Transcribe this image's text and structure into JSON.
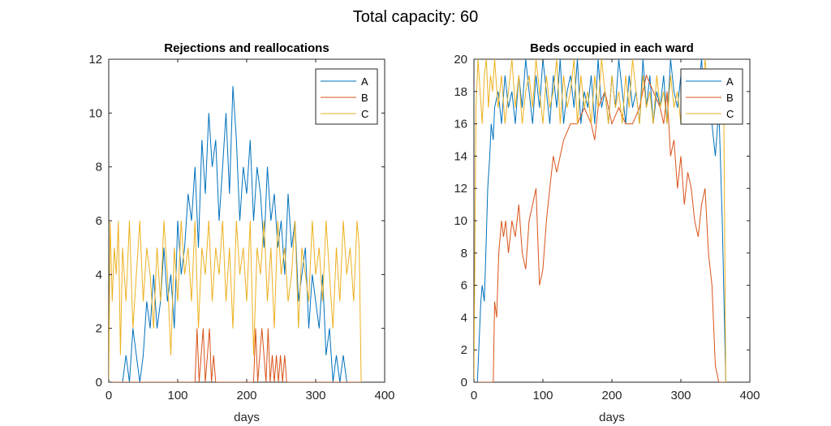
{
  "page": {
    "title": "Total capacity: 60"
  },
  "chart_data": [
    {
      "type": "line",
      "title": "Rejections and reallocations",
      "xlabel": "days",
      "ylabel": "",
      "xlim": [
        0,
        400
      ],
      "ylim": [
        0,
        12
      ],
      "xticks": [
        0,
        100,
        200,
        300,
        400
      ],
      "yticks": [
        0,
        2,
        4,
        6,
        8,
        10,
        12
      ],
      "legend": "top-right",
      "series": [
        {
          "name": "A",
          "color": "#0072BD",
          "x": [
            0,
            20,
            25,
            30,
            35,
            40,
            45,
            50,
            55,
            60,
            65,
            70,
            75,
            80,
            85,
            90,
            95,
            100,
            105,
            110,
            115,
            120,
            125,
            130,
            135,
            140,
            145,
            150,
            155,
            160,
            165,
            170,
            175,
            180,
            185,
            190,
            195,
            200,
            205,
            210,
            215,
            220,
            225,
            230,
            235,
            240,
            245,
            250,
            255,
            260,
            265,
            270,
            275,
            280,
            285,
            290,
            295,
            300,
            305,
            310,
            315,
            320,
            325,
            330,
            335,
            340,
            345,
            365
          ],
          "y": [
            0,
            0,
            1,
            0,
            2,
            1,
            0,
            1,
            3,
            2,
            4,
            2,
            3,
            5,
            3,
            4,
            2,
            6,
            4,
            5,
            7,
            6,
            8,
            5,
            9,
            7,
            10,
            8,
            9,
            6,
            8,
            10,
            7,
            11,
            9,
            6,
            8,
            7,
            9,
            6,
            8,
            7,
            5,
            8,
            6,
            7,
            5,
            6,
            4,
            7,
            5,
            6,
            3,
            4,
            5,
            2,
            4,
            3,
            2,
            4,
            1,
            2,
            0,
            1,
            0,
            1,
            0,
            0
          ]
        },
        {
          "name": "B",
          "color": "#D95319",
          "x": [
            0,
            100,
            125,
            128,
            131,
            134,
            137,
            140,
            143,
            146,
            149,
            152,
            155,
            158,
            200,
            210,
            213,
            216,
            219,
            222,
            225,
            228,
            231,
            234,
            237,
            240,
            243,
            246,
            249,
            252,
            255,
            258,
            365
          ],
          "y": [
            0,
            0,
            0,
            2,
            0,
            1,
            2,
            0,
            1,
            2,
            0,
            1,
            0,
            0,
            0,
            0,
            2,
            0,
            1,
            2,
            1,
            0,
            2,
            0,
            1,
            0,
            1,
            0,
            1,
            0,
            1,
            0,
            0
          ]
        },
        {
          "name": "C",
          "color": "#EDB120",
          "x": [
            0,
            2,
            5,
            8,
            11,
            14,
            17,
            20,
            25,
            30,
            35,
            40,
            45,
            50,
            55,
            60,
            65,
            70,
            75,
            80,
            85,
            90,
            95,
            100,
            105,
            110,
            115,
            120,
            125,
            130,
            135,
            140,
            145,
            150,
            155,
            160,
            165,
            170,
            175,
            180,
            185,
            190,
            195,
            200,
            205,
            210,
            215,
            220,
            225,
            230,
            235,
            240,
            245,
            250,
            255,
            260,
            265,
            270,
            275,
            280,
            285,
            290,
            295,
            300,
            305,
            310,
            315,
            320,
            325,
            330,
            335,
            340,
            345,
            350,
            355,
            360,
            363,
            366
          ],
          "y": [
            0,
            6,
            3,
            5,
            4,
            6,
            1,
            5,
            3,
            6,
            2,
            4,
            6,
            3,
            5,
            4,
            2,
            5,
            3,
            6,
            4,
            1,
            5,
            3,
            6,
            4,
            5,
            3,
            6,
            2,
            5,
            4,
            6,
            3,
            5,
            4,
            6,
            3,
            5,
            2,
            6,
            4,
            5,
            3,
            6,
            1,
            5,
            4,
            6,
            3,
            5,
            2,
            6,
            4,
            5,
            3,
            4,
            6,
            2,
            5,
            4,
            3,
            6,
            4,
            5,
            3,
            6,
            4,
            2,
            5,
            3,
            6,
            4,
            5,
            3,
            6,
            5,
            0
          ]
        }
      ]
    },
    {
      "type": "line",
      "title": "Beds occupied in each ward",
      "xlabel": "days",
      "ylabel": "",
      "xlim": [
        0,
        400
      ],
      "ylim": [
        0,
        20
      ],
      "xticks": [
        0,
        100,
        200,
        300,
        400
      ],
      "yticks": [
        0,
        2,
        4,
        6,
        8,
        10,
        12,
        14,
        16,
        18,
        20
      ],
      "legend": "top-right",
      "series": [
        {
          "name": "A",
          "color": "#0072BD",
          "x": [
            0,
            5,
            10,
            12,
            15,
            18,
            20,
            23,
            25,
            28,
            30,
            35,
            40,
            45,
            50,
            55,
            60,
            65,
            70,
            75,
            80,
            85,
            90,
            95,
            100,
            105,
            110,
            115,
            120,
            125,
            130,
            135,
            140,
            145,
            150,
            155,
            160,
            165,
            170,
            175,
            180,
            185,
            190,
            195,
            200,
            205,
            210,
            215,
            220,
            225,
            230,
            235,
            240,
            245,
            250,
            255,
            260,
            265,
            270,
            275,
            280,
            285,
            290,
            295,
            300,
            305,
            310,
            315,
            320,
            325,
            330,
            335,
            340,
            345,
            350,
            355,
            360,
            365
          ],
          "y": [
            0,
            0,
            5,
            6,
            5,
            9,
            12,
            14,
            16,
            15,
            17,
            18,
            16,
            19,
            17,
            18,
            16,
            19,
            17,
            20,
            18,
            16,
            19,
            17,
            20,
            18,
            16,
            19,
            17,
            20,
            16,
            18,
            19,
            17,
            20,
            16,
            18,
            17,
            19,
            16,
            20,
            17,
            18,
            16,
            19,
            17,
            20,
            18,
            16,
            19,
            17,
            18,
            16,
            20,
            17,
            19,
            16,
            18,
            17,
            19,
            16,
            20,
            18,
            17,
            19,
            16,
            18,
            17,
            19,
            18,
            20,
            17,
            19,
            16,
            14,
            17,
            10,
            0
          ]
        },
        {
          "name": "B",
          "color": "#D95319",
          "x": [
            0,
            28,
            30,
            33,
            36,
            40,
            43,
            46,
            50,
            55,
            60,
            65,
            70,
            75,
            80,
            85,
            90,
            95,
            100,
            105,
            110,
            115,
            120,
            130,
            140,
            150,
            160,
            170,
            175,
            180,
            190,
            200,
            210,
            220,
            230,
            240,
            250,
            260,
            270,
            275,
            280,
            285,
            290,
            295,
            300,
            305,
            310,
            315,
            320,
            325,
            330,
            335,
            340,
            345,
            350,
            355,
            360,
            365
          ],
          "y": [
            0,
            0,
            5,
            4,
            8,
            10,
            9,
            10,
            8,
            10,
            9,
            11,
            8,
            7,
            10,
            11,
            12,
            6,
            7,
            10,
            12,
            14,
            13,
            15,
            16,
            16,
            17,
            16,
            15,
            17,
            18,
            16,
            17,
            16,
            16,
            17,
            19,
            18,
            17,
            16,
            18,
            14,
            15,
            12,
            14,
            11,
            13,
            12,
            10,
            9,
            11,
            12,
            8,
            6,
            1,
            0,
            0,
            0
          ]
        },
        {
          "name": "C",
          "color": "#EDB120",
          "x": [
            0,
            3,
            6,
            9,
            12,
            15,
            18,
            21,
            24,
            27,
            30,
            35,
            40,
            45,
            50,
            55,
            60,
            65,
            70,
            75,
            80,
            85,
            90,
            95,
            100,
            105,
            110,
            115,
            120,
            125,
            130,
            135,
            140,
            145,
            150,
            155,
            160,
            165,
            170,
            175,
            180,
            185,
            190,
            195,
            200,
            205,
            210,
            215,
            220,
            225,
            230,
            235,
            240,
            245,
            250,
            255,
            260,
            265,
            270,
            275,
            280,
            285,
            290,
            295,
            300,
            305,
            310,
            315,
            320,
            325,
            330,
            335,
            340,
            345,
            350,
            355,
            360,
            362,
            365
          ],
          "y": [
            0,
            17,
            20,
            18,
            16,
            19,
            20,
            17,
            19,
            18,
            20,
            17,
            19,
            16,
            18,
            20,
            17,
            19,
            16,
            18,
            19,
            17,
            20,
            18,
            16,
            19,
            17,
            18,
            20,
            16,
            19,
            17,
            18,
            20,
            16,
            19,
            17,
            18,
            16,
            19,
            17,
            20,
            18,
            16,
            19,
            17,
            18,
            16,
            19,
            17,
            20,
            18,
            16,
            19,
            17,
            18,
            16,
            19,
            17,
            18,
            16,
            19,
            17,
            18,
            16,
            19,
            17,
            18,
            16,
            19,
            17,
            20,
            18,
            17,
            19,
            16,
            19,
            18,
            0
          ]
        }
      ]
    }
  ]
}
